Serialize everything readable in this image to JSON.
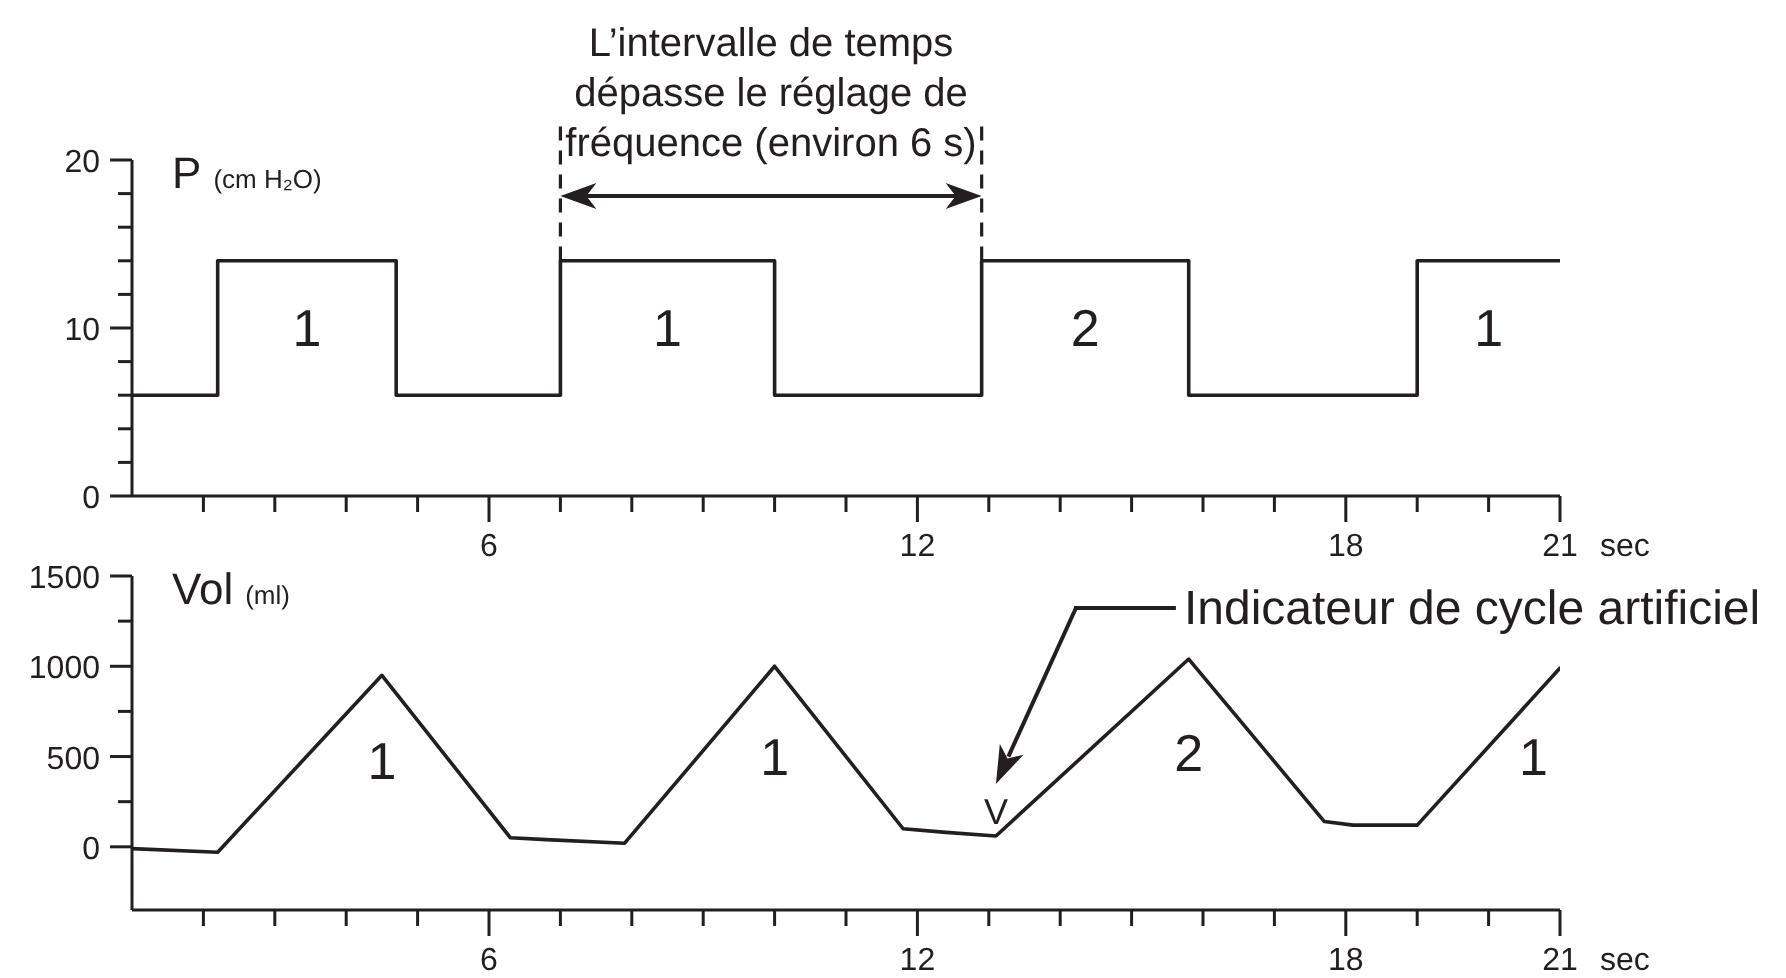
{
  "chart_data": [
    {
      "type": "step",
      "ylabel": "P (cm H₂O)",
      "xlabel": "sec",
      "color": "#231f20",
      "x": [
        1,
        2.2,
        4.7,
        7,
        10,
        12.9,
        15.8,
        19,
        21
      ],
      "values": [
        6,
        14,
        6,
        14,
        6,
        14,
        6,
        14,
        14
      ],
      "xlim": [
        1,
        21
      ],
      "xticks": [
        {
          "value": 2,
          "label": null
        },
        {
          "value": 3,
          "label": null
        },
        {
          "value": 4,
          "label": null
        },
        {
          "value": 5,
          "label": null
        },
        6,
        {
          "value": 7,
          "label": null
        },
        {
          "value": 8,
          "label": null
        },
        {
          "value": 9,
          "label": null
        },
        {
          "value": 10,
          "label": null
        },
        {
          "value": 11,
          "label": null
        },
        12,
        {
          "value": 13,
          "label": null
        },
        {
          "value": 14,
          "label": null
        },
        {
          "value": 15,
          "label": null
        },
        {
          "value": 16,
          "label": null
        },
        {
          "value": 17,
          "label": null
        },
        18,
        {
          "value": 19,
          "label": null
        },
        {
          "value": 20,
          "label": null
        },
        21
      ],
      "ylim": [
        0,
        20
      ],
      "yticks": [
        0,
        {
          "value": 2,
          "label": null
        },
        {
          "value": 4,
          "label": null
        },
        {
          "value": 6,
          "label": null
        },
        {
          "value": 8,
          "label": null
        },
        10,
        {
          "value": 12,
          "label": null
        },
        {
          "value": 14,
          "label": null
        },
        {
          "value": 16,
          "label": null
        },
        {
          "value": 18,
          "label": null
        },
        20
      ],
      "ref_lines": [
        {
          "axis": "x",
          "value": 7,
          "line_style": "dashed"
        },
        {
          "axis": "x",
          "value": 12.9,
          "line_style": "dashed"
        }
      ],
      "annotations": [
        "L’intervalle de temps dépasse le réglage de fréquence (environ 6 s)",
        "1",
        "1",
        "2",
        "1"
      ]
    },
    {
      "type": "line",
      "ylabel": "Vol (ml)",
      "xlabel": "sec",
      "color": "#231f20",
      "x": [
        1,
        2.2,
        4.5,
        6.3,
        6.8,
        7.9,
        10,
        11.8,
        12.4,
        13.1,
        15.8,
        17.7,
        18.1,
        19,
        21
      ],
      "values": [
        -10,
        -30,
        950,
        50,
        40,
        20,
        1000,
        100,
        80,
        60,
        1040,
        140,
        120,
        120,
        990
      ],
      "xlim": [
        1,
        21
      ],
      "xticks": [
        {
          "value": 2,
          "label": null
        },
        {
          "value": 3,
          "label": null
        },
        {
          "value": 4,
          "label": null
        },
        {
          "value": 5,
          "label": null
        },
        6,
        {
          "value": 7,
          "label": null
        },
        {
          "value": 8,
          "label": null
        },
        {
          "value": 9,
          "label": null
        },
        {
          "value": 10,
          "label": null
        },
        {
          "value": 11,
          "label": null
        },
        12,
        {
          "value": 13,
          "label": null
        },
        {
          "value": 14,
          "label": null
        },
        {
          "value": 15,
          "label": null
        },
        {
          "value": 16,
          "label": null
        },
        {
          "value": 17,
          "label": null
        },
        18,
        {
          "value": 19,
          "label": null
        },
        {
          "value": 20,
          "label": null
        },
        21
      ],
      "ylim": [
        -350,
        1500
      ],
      "yticks": [
        0,
        {
          "value": 250,
          "label": null
        },
        500,
        {
          "value": 750,
          "label": null
        },
        1000,
        {
          "value": 1250,
          "label": null
        },
        1500
      ],
      "annotations": [
        "1",
        "1",
        "2",
        "1",
        {
          "text": "V",
          "x": 13.1,
          "y": 60
        },
        "Indicateur de cycle artificiel"
      ]
    }
  ]
}
